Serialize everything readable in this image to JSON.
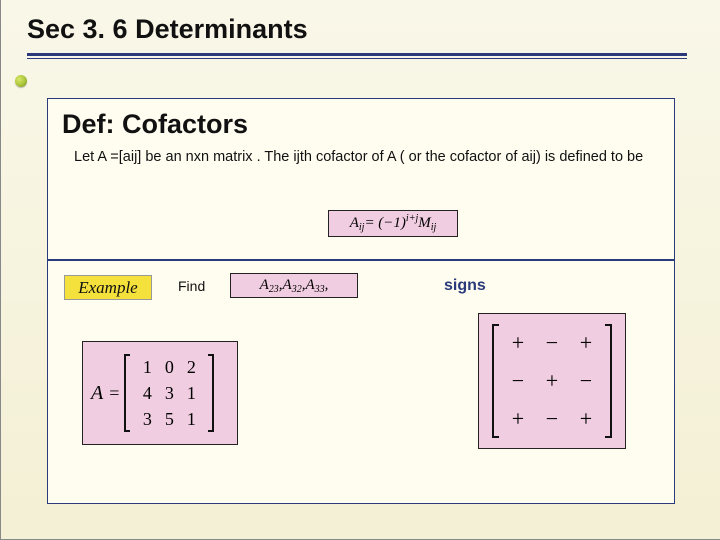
{
  "colors": {
    "accent_navy": "#2b3a7a",
    "panel_bg": "#fffcf0",
    "pink_box": "#f0cde0",
    "yellow_pill": "#f5e13b",
    "slide_bg_top": "#f9f7e8",
    "slide_bg_bottom": "#f4f0d5"
  },
  "title": "Sec 3. 6 Determinants",
  "definition": {
    "heading": "Def:  Cofactors",
    "body": "Let A =[aij]  be an nxn matrix . The ijth cofactor of A ( or the cofactor of aij) is defined to be",
    "formula": {
      "lhs_A": "A",
      "lhs_sub": "ij",
      "eq": " = (−1)",
      "sup": "i+j",
      "rhs_M": " M",
      "rhs_sub": "ij"
    }
  },
  "example": {
    "pill_label": "Example",
    "find_label": "Find",
    "cofactors": {
      "a1": "A",
      "s1": "23",
      "a2": "A",
      "s2": "32",
      "a3": "A",
      "s3": "33",
      "sep": ", ",
      "trail": ","
    },
    "matrix": {
      "lhs": "A",
      "eq": "=",
      "rows": [
        [
          "1",
          "0",
          "2"
        ],
        [
          "4",
          "3",
          "1"
        ],
        [
          "3",
          "5",
          "1"
        ]
      ]
    }
  },
  "signs": {
    "label": "signs",
    "grid": [
      [
        "+",
        "−",
        "+"
      ],
      [
        "−",
        "+",
        "−"
      ],
      [
        "+",
        "−",
        "+"
      ]
    ]
  }
}
